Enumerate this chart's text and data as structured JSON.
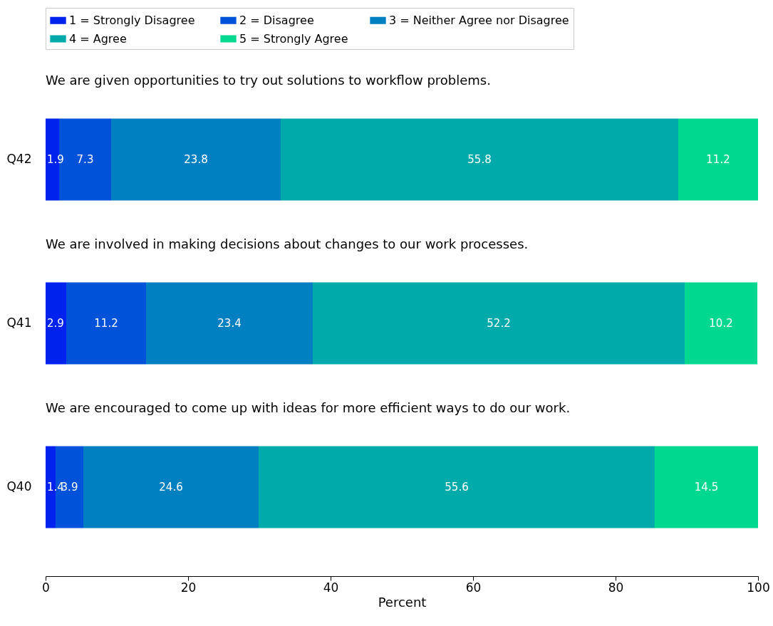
{
  "chart_data": {
    "type": "bar",
    "orientation": "horizontal",
    "stacked": true,
    "categories": [
      "Q42",
      "Q41",
      "Q40"
    ],
    "series": [
      {
        "name": "1 =  Strongly Disagree",
        "color": "#0022ee",
        "values": [
          1.9,
          2.9,
          1.4
        ]
      },
      {
        "name": "2 = Disagree",
        "color": "#0052d8",
        "values": [
          7.3,
          11.2,
          3.9
        ]
      },
      {
        "name": "3 = Neither Agree nor Disagree",
        "color": "#0080c0",
        "values": [
          23.8,
          23.4,
          24.6
        ]
      },
      {
        "name": "4 = Agree",
        "color": "#00aaaa",
        "values": [
          55.8,
          52.2,
          55.6
        ]
      },
      {
        "name": "5 = Strongly Agree",
        "color": "#00d890",
        "values": [
          11.2,
          10.2,
          14.5
        ]
      }
    ],
    "xlabel": "Percent",
    "xlim": [
      0,
      100
    ],
    "xticks": [
      0,
      20,
      40,
      60,
      80,
      100
    ],
    "annotations": [
      "We are given opportunities to try out solutions to workflow problems.",
      "We are involved in making decisions about changes to our work processes.",
      "We are encouraged to come up with ideas for more efficient ways to do our work."
    ],
    "data_labels": true,
    "legend": "top",
    "grid": false
  }
}
